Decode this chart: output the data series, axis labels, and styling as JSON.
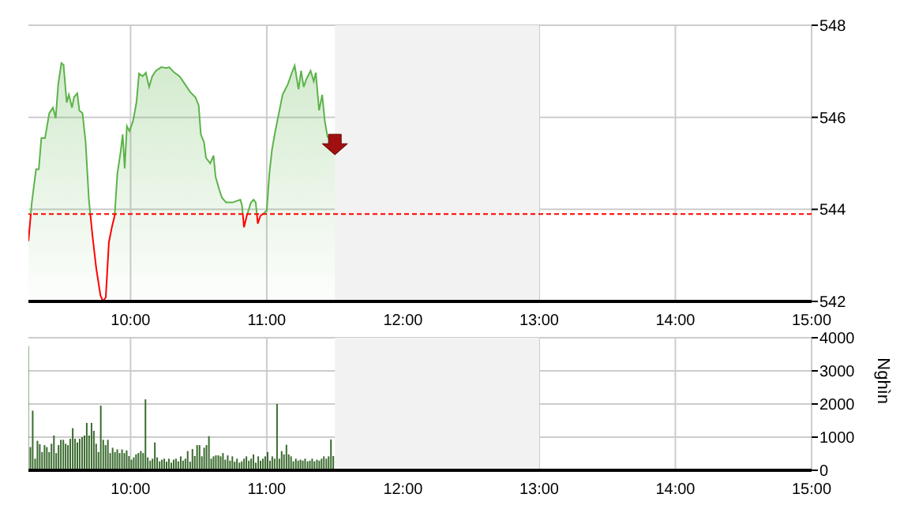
{
  "chart_data": [
    {
      "type": "area",
      "x": [
        9.25,
        9.275,
        9.306,
        9.326,
        9.345,
        9.372,
        9.403,
        9.43,
        9.45,
        9.469,
        9.492,
        9.508,
        9.531,
        9.547,
        9.57,
        9.585,
        9.609,
        9.624,
        9.647,
        9.67,
        9.694,
        9.721,
        9.748,
        9.779,
        9.798,
        9.818,
        9.841,
        9.864,
        9.883,
        9.903,
        9.926,
        9.942,
        9.957,
        9.973,
        9.992,
        10.019,
        10.043,
        10.062,
        10.089,
        10.112,
        10.136,
        10.159,
        10.186,
        10.225,
        10.264,
        10.283,
        10.322,
        10.36,
        10.399,
        10.438,
        10.477,
        10.5,
        10.516,
        10.539,
        10.554,
        10.585,
        10.609,
        10.624,
        10.651,
        10.67,
        10.701,
        10.748,
        10.806,
        10.818,
        10.833,
        10.853,
        10.884,
        10.903,
        10.919,
        10.934,
        10.953,
        10.98,
        11.0,
        11.019,
        11.038,
        11.058,
        11.089,
        11.116,
        11.155,
        11.182,
        11.205,
        11.233,
        11.252,
        11.271,
        11.291,
        11.322,
        11.345,
        11.36,
        11.384,
        11.407,
        11.426,
        11.446,
        11.484,
        11.5
      ],
      "series": [
        {
          "color": "#5cb34a",
          "values": [
            543.31,
            544.15,
            544.87,
            544.87,
            545.55,
            545.55,
            546.09,
            546.21,
            545.98,
            546.72,
            547.18,
            547.14,
            546.32,
            546.49,
            546.21,
            546.44,
            546.52,
            546.15,
            546.09,
            545.46,
            544.21,
            543.41,
            542.72,
            542.13,
            542.0,
            542.09,
            543.29,
            543.63,
            543.86,
            544.78,
            545.23,
            545.63,
            544.89,
            545.81,
            545.7,
            545.93,
            546.32,
            546.95,
            546.89,
            546.97,
            546.66,
            546.89,
            547.01,
            547.09,
            547.07,
            547.09,
            546.97,
            546.89,
            546.72,
            546.55,
            546.43,
            546.26,
            545.63,
            545.46,
            545.12,
            545.0,
            545.17,
            544.71,
            544.43,
            544.26,
            544.15,
            544.15,
            544.21,
            544.09,
            543.61,
            543.86,
            544.15,
            544.21,
            544.15,
            543.69,
            543.86,
            543.92,
            543.98,
            544.78,
            545.29,
            545.63,
            546.09,
            546.49,
            546.72,
            546.95,
            547.12,
            546.61,
            547.01,
            546.66,
            546.83,
            547.01,
            546.78,
            546.97,
            546.15,
            546.49,
            545.92,
            545.58,
            545.46,
            545.46
          ]
        }
      ],
      "xlim": [
        9.25,
        15
      ],
      "xticks": [
        {
          "value": 10,
          "label": "10:00"
        },
        {
          "value": 11,
          "label": "11:00"
        },
        {
          "value": 12,
          "label": "12:00"
        },
        {
          "value": 13,
          "label": "13:00"
        },
        {
          "value": 14,
          "label": "14:00"
        },
        {
          "value": 15,
          "label": "15:00"
        }
      ],
      "ylim": [
        542,
        548
      ],
      "yticks": [
        542,
        544,
        546,
        548
      ],
      "grid": true,
      "ref_lines": [
        {
          "axis": "y",
          "value": 543.9,
          "color": "#ff0000",
          "line_style": "dashed"
        }
      ],
      "bands": [
        {
          "axis": "x",
          "from": 11.5,
          "to": 13,
          "color": "#f2f2f2"
        }
      ]
    },
    {
      "type": "bar",
      "ylabel": "Nghìn",
      "x": [
        9.25,
        9.267,
        9.284,
        9.302,
        9.319,
        9.336,
        9.353,
        9.371,
        9.388,
        9.405,
        9.422,
        9.44,
        9.457,
        9.474,
        9.491,
        9.509,
        9.526,
        9.543,
        9.56,
        9.578,
        9.595,
        9.612,
        9.629,
        9.647,
        9.664,
        9.681,
        9.698,
        9.716,
        9.733,
        9.75,
        9.767,
        9.784,
        9.802,
        9.819,
        9.836,
        9.853,
        9.871,
        9.888,
        9.905,
        9.922,
        9.94,
        9.957,
        9.974,
        9.991,
        10.009,
        10.026,
        10.043,
        10.06,
        10.078,
        10.095,
        10.112,
        10.129,
        10.147,
        10.164,
        10.181,
        10.198,
        10.216,
        10.233,
        10.25,
        10.267,
        10.284,
        10.302,
        10.319,
        10.336,
        10.353,
        10.371,
        10.388,
        10.405,
        10.422,
        10.44,
        10.457,
        10.474,
        10.491,
        10.509,
        10.526,
        10.543,
        10.56,
        10.578,
        10.595,
        10.612,
        10.629,
        10.647,
        10.664,
        10.681,
        10.698,
        10.716,
        10.733,
        10.75,
        10.767,
        10.784,
        10.802,
        10.819,
        10.836,
        10.853,
        10.871,
        10.888,
        10.905,
        10.922,
        10.94,
        10.957,
        10.974,
        10.991,
        11.009,
        11.026,
        11.043,
        11.06,
        11.078,
        11.095,
        11.112,
        11.129,
        11.147,
        11.164,
        11.181,
        11.198,
        11.216,
        11.233,
        11.25,
        11.267,
        11.284,
        11.302,
        11.319,
        11.336,
        11.353,
        11.371,
        11.388,
        11.405,
        11.422,
        11.44,
        11.457,
        11.474,
        11.491
      ],
      "series": [
        {
          "color": "#3a6b2e",
          "values": [
            3750,
            700,
            1800,
            350,
            890,
            790,
            550,
            760,
            700,
            550,
            800,
            1050,
            520,
            760,
            920,
            920,
            800,
            760,
            950,
            1270,
            950,
            840,
            950,
            1000,
            1050,
            1430,
            1050,
            1430,
            1190,
            800,
            550,
            1950,
            920,
            760,
            920,
            520,
            680,
            550,
            630,
            520,
            630,
            520,
            600,
            430,
            320,
            390,
            480,
            520,
            580,
            520,
            2140,
            390,
            290,
            350,
            840,
            390,
            270,
            320,
            350,
            260,
            350,
            230,
            320,
            350,
            270,
            420,
            290,
            350,
            580,
            260,
            640,
            430,
            760,
            760,
            420,
            680,
            760,
            1030,
            350,
            420,
            450,
            450,
            420,
            520,
            320,
            450,
            290,
            420,
            260,
            350,
            230,
            270,
            350,
            420,
            290,
            350,
            480,
            230,
            420,
            290,
            350,
            420,
            550,
            290,
            420,
            350,
            2000,
            350,
            580,
            480,
            770,
            480,
            420,
            270,
            350,
            290,
            320,
            290,
            350,
            270,
            290,
            350,
            270,
            320,
            290,
            350,
            420,
            350,
            420,
            930,
            430
          ]
        }
      ],
      "xlim": [
        9.25,
        15
      ],
      "xticks": [
        {
          "value": 10,
          "label": "10:00"
        },
        {
          "value": 11,
          "label": "11:00"
        },
        {
          "value": 12,
          "label": "12:00"
        },
        {
          "value": 13,
          "label": "13:00"
        },
        {
          "value": 14,
          "label": "14:00"
        },
        {
          "value": 15,
          "label": "15:00"
        }
      ],
      "ylim": [
        0,
        4000
      ],
      "yticks": [
        0,
        1000,
        2000,
        3000,
        4000
      ],
      "grid": true,
      "bands": [
        {
          "axis": "x",
          "from": 11.5,
          "to": 13,
          "color": "#f2f2f2"
        }
      ]
    }
  ]
}
